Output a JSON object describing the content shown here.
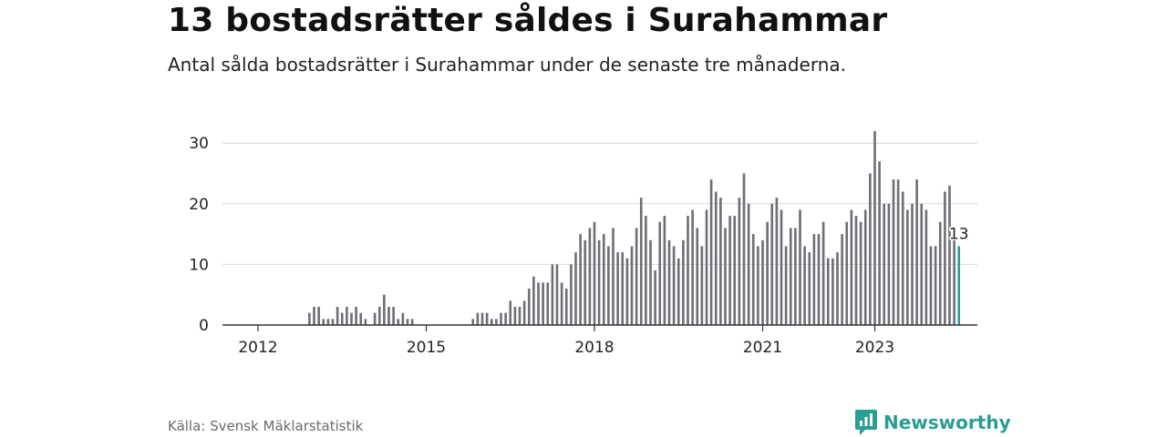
{
  "header": {
    "title": "13 bostadsrätter såldes i Surahammar",
    "subtitle": "Antal sålda bostadsrätter i Surahammar under de senaste tre månaderna."
  },
  "footer": {
    "source": "Källa: Svensk Mäklarstatistik",
    "brand": "Newsworthy",
    "brand_icon": "newsworthy-chart-bubble-icon"
  },
  "colors": {
    "bar": "#6e6e76",
    "highlight": "#2a9d94",
    "grid": "#d9d9d9",
    "axis": "#333333"
  },
  "chart_data": {
    "type": "bar",
    "x_unit": "month",
    "start": "2011-01",
    "ylim": [
      0,
      32
    ],
    "yticks": [
      0,
      10,
      20,
      30
    ],
    "xtick_labels": [
      "2012",
      "2015",
      "2018",
      "2021",
      "2023"
    ],
    "grid": true,
    "highlight_label": "13",
    "values": [
      0,
      0,
      0,
      0,
      0,
      0,
      0,
      0,
      0,
      0,
      0,
      0,
      0,
      0,
      0,
      0,
      0,
      0,
      0,
      0,
      0,
      0,
      0,
      2,
      3,
      3,
      1,
      1,
      1,
      3,
      2,
      3,
      2,
      3,
      2,
      1,
      0,
      2,
      3,
      5,
      3,
      3,
      1,
      2,
      1,
      1,
      0,
      0,
      0,
      0,
      0,
      0,
      0,
      0,
      0,
      0,
      0,
      0,
      1,
      2,
      2,
      2,
      1,
      1,
      2,
      2,
      4,
      3,
      3,
      4,
      6,
      8,
      7,
      7,
      7,
      10,
      10,
      7,
      6,
      10,
      12,
      15,
      14,
      16,
      17,
      14,
      15,
      13,
      16,
      12,
      12,
      11,
      13,
      16,
      21,
      18,
      14,
      9,
      17,
      18,
      14,
      13,
      11,
      14,
      18,
      19,
      16,
      13,
      19,
      24,
      22,
      21,
      16,
      18,
      18,
      21,
      25,
      20,
      15,
      13,
      14,
      17,
      20,
      21,
      19,
      13,
      16,
      16,
      19,
      13,
      12,
      15,
      15,
      17,
      11,
      11,
      12,
      15,
      17,
      19,
      18,
      17,
      19,
      25,
      32,
      27,
      20,
      20,
      24,
      24,
      22,
      19,
      20,
      24,
      20,
      19,
      13,
      13,
      17,
      22,
      23,
      14,
      13
    ]
  }
}
